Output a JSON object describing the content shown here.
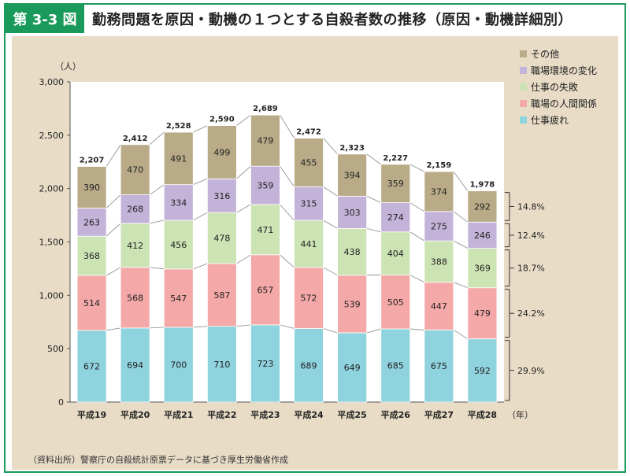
{
  "header": {
    "figure_label": "第 3-3 図",
    "title": "勤務問題を原因・動機の１つとする自殺者数の推移（原因・動機詳細別）"
  },
  "source": "（資料出所）警察庁の自殺統計原票データに基づき厚生労働省作成",
  "chart_data": {
    "type": "bar",
    "stacked": true,
    "ylabel": "（人）",
    "xunit": "（年）",
    "ylim": [
      0,
      3000
    ],
    "yticks": [
      0,
      500,
      1000,
      1500,
      2000,
      2500,
      3000
    ],
    "categories": [
      "平成19",
      "平成20",
      "平成21",
      "平成22",
      "平成23",
      "平成24",
      "平成25",
      "平成26",
      "平成27",
      "平成28"
    ],
    "tick_labels": [
      "0",
      "500",
      "1,000",
      "1,500",
      "2,000",
      "2,500",
      "3,000"
    ],
    "totals": [
      "2,207",
      "2,412",
      "2,528",
      "2,590",
      "2,689",
      "2,472",
      "2,323",
      "2,227",
      "2,159",
      "1,978"
    ],
    "series": [
      {
        "name": "仕事疲れ",
        "color": "#8fd3de",
        "values": [
          672,
          694,
          700,
          710,
          723,
          689,
          649,
          685,
          675,
          592
        ],
        "share": "29.9%"
      },
      {
        "name": "職場の人間関係",
        "color": "#f4a8a8",
        "values": [
          514,
          568,
          547,
          587,
          657,
          572,
          539,
          505,
          447,
          479
        ],
        "share": "24.2%"
      },
      {
        "name": "仕事の失敗",
        "color": "#cce3b4",
        "values": [
          368,
          412,
          456,
          478,
          471,
          441,
          438,
          404,
          388,
          369
        ],
        "share": "18.7%"
      },
      {
        "name": "職場環境の変化",
        "color": "#c4b3d9",
        "values": [
          263,
          268,
          334,
          316,
          359,
          315,
          303,
          274,
          275,
          246
        ],
        "share": "12.4%"
      },
      {
        "name": "その他",
        "color": "#b9ab88",
        "values": [
          390,
          470,
          491,
          499,
          479,
          455,
          394,
          359,
          374,
          292
        ],
        "share": "14.8%"
      }
    ],
    "legend_placement": "top-right"
  }
}
